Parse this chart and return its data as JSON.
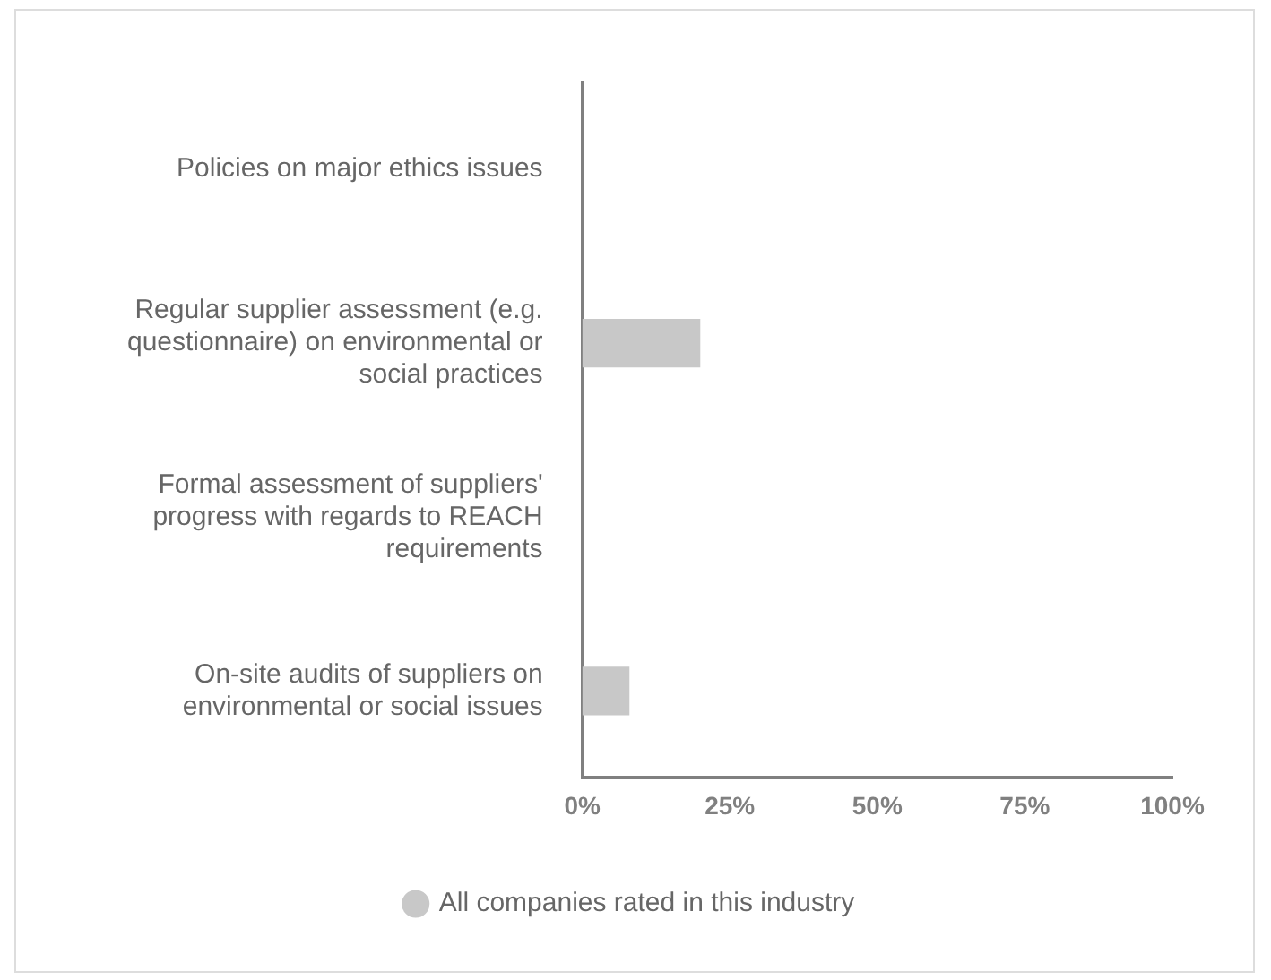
{
  "chart_data": {
    "type": "bar",
    "orientation": "horizontal",
    "categories": [
      "Policies on major ethics issues",
      "Regular supplier assessment (e.g. questionnaire) on environmental or social practices",
      "Formal assessment of suppliers' progress with regards to REACH requirements",
      "On-site audits of suppliers on environmental or social issues"
    ],
    "series": [
      {
        "name": "All companies rated in this industry",
        "color": "#c8c8c8",
        "values": [
          0,
          20,
          0,
          8
        ]
      }
    ],
    "xlim": [
      0,
      100
    ],
    "xticks": [
      {
        "value": 0,
        "label": "0%"
      },
      {
        "value": 25,
        "label": "25%"
      },
      {
        "value": 50,
        "label": "50%"
      },
      {
        "value": 75,
        "label": "75%"
      },
      {
        "value": 100,
        "label": "100%"
      }
    ],
    "grid": false,
    "legend": "bottom"
  }
}
